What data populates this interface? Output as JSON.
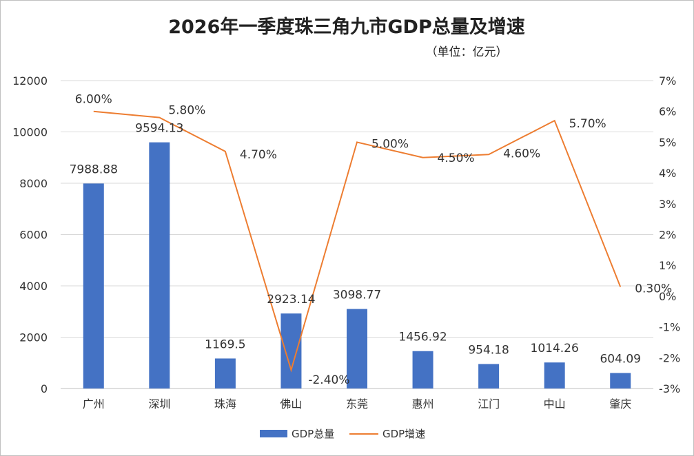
{
  "chart_data": {
    "type": "bar",
    "title": "2026年一季度珠三角九市GDP总量及增速",
    "subtitle": "（单位：亿元）",
    "categories": [
      "广州",
      "深圳",
      "珠海",
      "佛山",
      "东莞",
      "惠州",
      "江门",
      "中山",
      "肇庆"
    ],
    "series": [
      {
        "name": "GDP总量",
        "type": "bar",
        "axis": "left",
        "color": "#4472C4",
        "values": [
          7988.88,
          9594.13,
          1169.5,
          2923.14,
          3098.77,
          1456.92,
          954.18,
          1014.26,
          604.09
        ],
        "labels": [
          "7988.88",
          "9594.13",
          "1169.5",
          "2923.14",
          "3098.77",
          "1456.92",
          "954.18",
          "1014.26",
          "604.09"
        ]
      },
      {
        "name": "GDP增速",
        "type": "line",
        "axis": "right",
        "color": "#ED7D31",
        "values": [
          6.0,
          5.8,
          4.7,
          -2.4,
          5.0,
          4.5,
          4.6,
          5.7,
          0.3
        ],
        "labels": [
          "6.00%",
          "5.80%",
          "4.70%",
          "-2.40%",
          "5.00%",
          "4.50%",
          "4.60%",
          "5.70%",
          "0.30%"
        ]
      }
    ],
    "y_left": {
      "min": 0,
      "max": 12000,
      "ticks": [
        "0",
        "2000",
        "4000",
        "6000",
        "8000",
        "10000",
        "12000"
      ]
    },
    "y_right": {
      "min": -3,
      "max": 7,
      "ticks": [
        "-3%",
        "-2%",
        "-1%",
        "0%",
        "1%",
        "2%",
        "3%",
        "4%",
        "5%",
        "6%",
        "7%"
      ]
    },
    "grid": true,
    "legend_position": "bottom"
  }
}
